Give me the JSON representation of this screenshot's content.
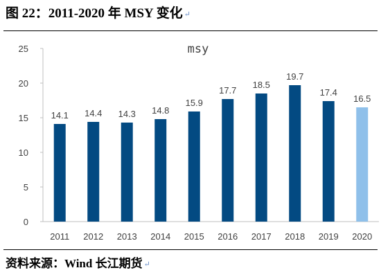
{
  "caption": {
    "text": "图 22：2011-2020 年 MSY 变化",
    "mark": "↵"
  },
  "source": {
    "text": "资料来源：Wind  长江期货",
    "mark": "↵"
  },
  "colors": {
    "bar_primary": "#034a82",
    "bar_highlight": "#8fc0ea",
    "axis": "#bfbfbf"
  },
  "chart_data": {
    "type": "bar",
    "title": "msy",
    "xlabel": "",
    "ylabel": "",
    "categories": [
      "2011",
      "2012",
      "2013",
      "2014",
      "2015",
      "2016",
      "2017",
      "2018",
      "2019",
      "2020"
    ],
    "series": [
      {
        "values": [
          14.1,
          14.4,
          14.3,
          14.8,
          15.9,
          17.7,
          18.5,
          19.7,
          17.4,
          16.5
        ],
        "value_labels": [
          "14.1",
          "14.4",
          "14.3",
          "14.8",
          "15.9",
          "17.7",
          "18.5",
          "19.7",
          "17.4",
          "16.5"
        ]
      }
    ],
    "highlight_category": "2020",
    "ylim": [
      0,
      25
    ],
    "yticks": [
      0,
      5,
      10,
      15,
      20,
      25
    ],
    "grid": false,
    "legend": "none"
  }
}
